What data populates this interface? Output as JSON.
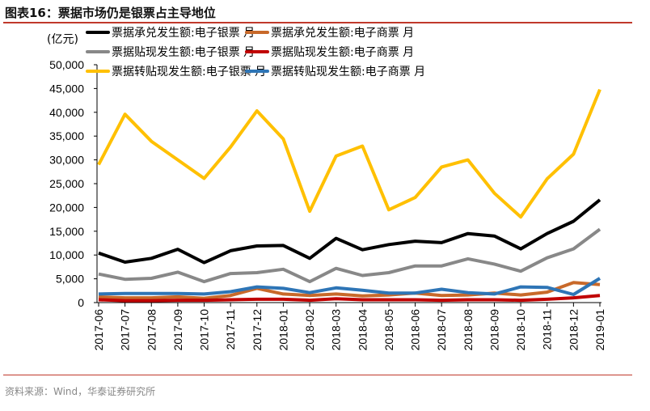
{
  "title": "图表16：票据市场仍是银票占主导地位",
  "source": "资料来源：Wind，华泰证券研究所",
  "chart_data": {
    "type": "line",
    "title": "图表16：票据市场仍是银票占主导地位",
    "ylabel": "(亿元)",
    "xlabel": "",
    "ylim": [
      0,
      50000
    ],
    "yticks": [
      0,
      5000,
      10000,
      15000,
      20000,
      25000,
      30000,
      35000,
      40000,
      45000,
      50000
    ],
    "ytick_labels": [
      "0",
      "5,000",
      "10,000",
      "15,000",
      "20,000",
      "25,000",
      "30,000",
      "35,000",
      "40,000",
      "45,000",
      "50,000"
    ],
    "grid": false,
    "legend_placement": "top",
    "categories": [
      "2017-06",
      "2017-07",
      "2017-08",
      "2017-09",
      "2017-10",
      "2017-11",
      "2017-12",
      "2018-01",
      "2018-02",
      "2018-03",
      "2018-04",
      "2018-05",
      "2018-06",
      "2018-07",
      "2018-08",
      "2018-09",
      "2018-10",
      "2018-11",
      "2018-12",
      "2019-01"
    ],
    "series": [
      {
        "name": "票据承兑发生额:电子银票 月",
        "color": "#000000",
        "values": [
          10400,
          8500,
          9300,
          11200,
          8400,
          10900,
          11900,
          12000,
          9300,
          13500,
          11100,
          12200,
          12900,
          12600,
          14500,
          14000,
          11300,
          14500,
          17100,
          21600
        ]
      },
      {
        "name": "票据承兑发生额:电子商票 月",
        "color": "#c8692a",
        "values": [
          1200,
          1000,
          1000,
          1200,
          900,
          1500,
          3000,
          1800,
          1500,
          1800,
          1400,
          1600,
          2000,
          1500,
          1600,
          2000,
          1600,
          2200,
          4200,
          3800
        ]
      },
      {
        "name": "票据贴现发生额:电子银票 月",
        "color": "#888888",
        "values": [
          6000,
          4900,
          5100,
          6400,
          4400,
          6100,
          6300,
          7000,
          4400,
          7200,
          5700,
          6300,
          7700,
          7700,
          9200,
          8100,
          6600,
          9400,
          11300,
          15400
        ]
      },
      {
        "name": "票据贴现发生额:电子商票 月",
        "color": "#c00000",
        "values": [
          600,
          400,
          400,
          500,
          500,
          600,
          700,
          700,
          500,
          800,
          600,
          600,
          600,
          500,
          600,
          600,
          500,
          700,
          1000,
          1500
        ]
      },
      {
        "name": "票据转贴现发生额:电子银票 月",
        "color": "#ffc000",
        "values": [
          29000,
          39600,
          33900,
          30000,
          26100,
          32700,
          40300,
          34400,
          19200,
          30800,
          32900,
          19500,
          22100,
          28500,
          30000,
          23000,
          18000,
          26000,
          31200,
          44800
        ]
      },
      {
        "name": "票据转贴现发生额:电子商票 月",
        "color": "#2e75b6",
        "values": [
          1800,
          1900,
          1900,
          1900,
          1800,
          2300,
          3300,
          3000,
          2100,
          3100,
          2600,
          2000,
          2000,
          2800,
          2100,
          1800,
          3300,
          3200,
          1700,
          5100
        ]
      }
    ]
  }
}
